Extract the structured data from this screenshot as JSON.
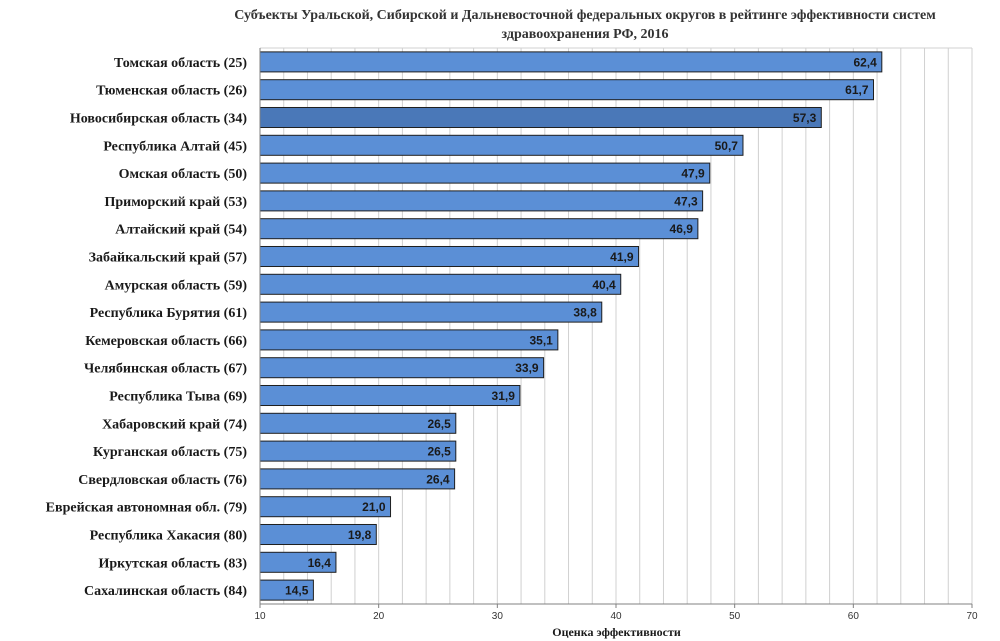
{
  "chart_data": {
    "type": "bar",
    "orientation": "horizontal",
    "title_line1": "Субъекты Уральской, Сибирской и Дальневосточной федеральных округов в рейтинге эффективности систем",
    "title_line2": "здравоохранения РФ, 2016",
    "xlabel": "Оценка эффективности",
    "ylabel": "",
    "xlim": [
      10,
      70
    ],
    "xticks": [
      10,
      20,
      30,
      40,
      50,
      60,
      70
    ],
    "grid": true,
    "legend": "none",
    "categories": [
      "Томская область (25)",
      "Тюменская область (26)",
      "Новосибирская область (34)",
      "Республика Алтай (45)",
      "Омская область (50)",
      "Приморский край (53)",
      "Алтайский край (54)",
      "Забайкальский край (57)",
      "Амурская область (59)",
      "Республика Бурятия (61)",
      "Кемеровская область (66)",
      "Челябинская область (67)",
      "Республика Тыва (69)",
      "Хабаровский край (74)",
      "Курганская область (75)",
      "Свердловская область (76)",
      "Еврейская автономная обл. (79)",
      "Республика Хакасия (80)",
      "Иркутская область (83)",
      "Сахалинская область (84)"
    ],
    "values": [
      62.4,
      61.7,
      57.3,
      50.7,
      47.9,
      47.3,
      46.9,
      41.9,
      40.4,
      38.8,
      35.1,
      33.9,
      31.9,
      26.5,
      26.5,
      26.4,
      21.0,
      19.8,
      16.4,
      14.5
    ],
    "value_labels": [
      "62,4",
      "61,7",
      "57,3",
      "50,7",
      "47,9",
      "47,3",
      "46,9",
      "41,9",
      "40,4",
      "38,8",
      "35,1",
      "33,9",
      "31,9",
      "26,5",
      "26,5",
      "26,4",
      "21,0",
      "19,8",
      "16,4",
      "14,5"
    ],
    "highlight_index": 2,
    "colors": {
      "bar": "#5b8fd6",
      "bar_highlight": "#4a78b8",
      "bar_stroke": "#1f1f1f",
      "grid": "#d0d0d0"
    }
  }
}
